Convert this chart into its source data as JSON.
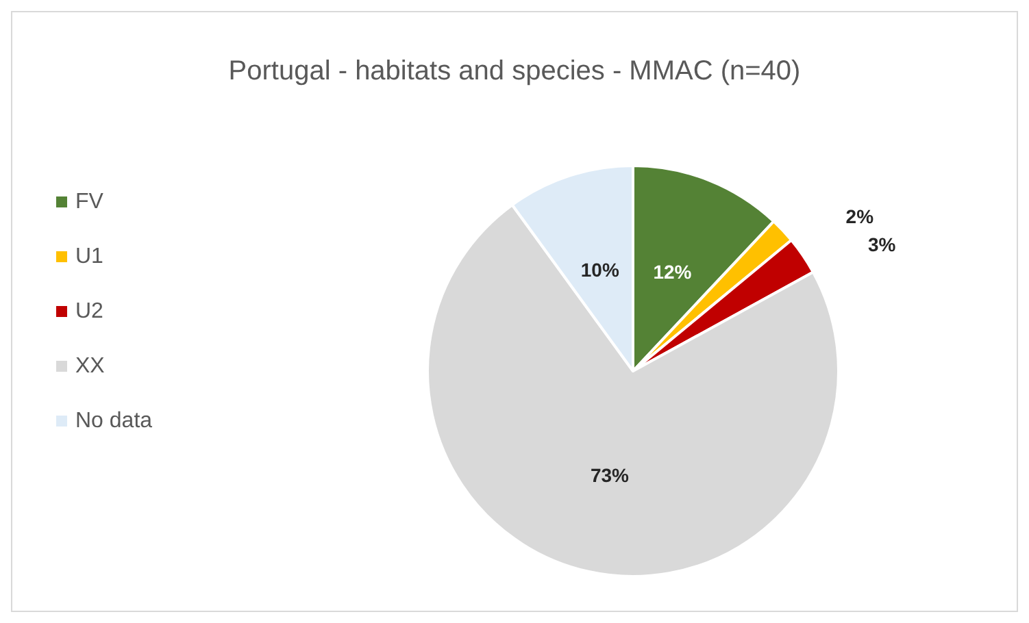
{
  "chart_data": {
    "type": "pie",
    "title": "Portugal - habitats and species - MMAC (n=40)",
    "categories": [
      "FV",
      "U1",
      "U2",
      "XX",
      "No data"
    ],
    "values": [
      12,
      2,
      3,
      73,
      10
    ],
    "colors": [
      "#548235",
      "#ffc000",
      "#c00000",
      "#d9d9d9",
      "#deebf7"
    ],
    "value_labels": [
      "12%",
      "2%",
      "3%",
      "73%",
      "10%"
    ],
    "legend": "left"
  }
}
